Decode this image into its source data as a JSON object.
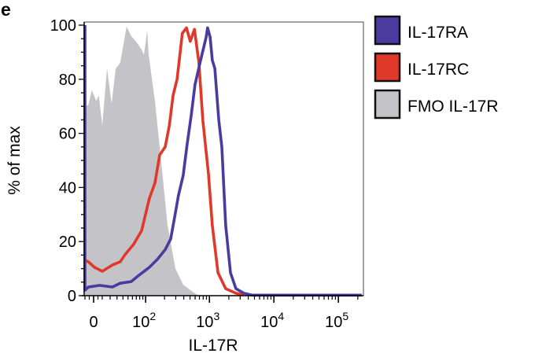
{
  "panel_label": "e",
  "chart_data": {
    "type": "area",
    "title": "",
    "xlabel": "IL-17R",
    "ylabel": "% of max",
    "x_scale": "biexponential",
    "xlim": [
      -11,
      230000
    ],
    "ylim": [
      0,
      100
    ],
    "x_ticks": [
      {
        "value": 0,
        "label": "0",
        "base": "0",
        "exp": ""
      },
      {
        "value": 100,
        "label": "10^2",
        "base": "10",
        "exp": "2"
      },
      {
        "value": 1000,
        "label": "10^3",
        "base": "10",
        "exp": "3"
      },
      {
        "value": 10000,
        "label": "10^4",
        "base": "10",
        "exp": "4"
      },
      {
        "value": 100000,
        "label": "10^5",
        "base": "10",
        "exp": "5"
      }
    ],
    "y_ticks": [
      "0",
      "20",
      "40",
      "60",
      "80",
      "100"
    ],
    "grid": false,
    "legend_position": "right",
    "series": [
      {
        "name": "IL-17RA",
        "color": "#4b3a9f",
        "style": "line",
        "x": [
          -11,
          -11,
          -6,
          7,
          23,
          35,
          57,
          78,
          115,
          154,
          205,
          250,
          288,
          330,
          392,
          451,
          520,
          598,
          730,
          890,
          937,
          1024,
          1110,
          1213,
          1396,
          1558,
          1790,
          2125,
          2574,
          3430,
          4540,
          230000
        ],
        "y": [
          100,
          2,
          3.2,
          3.8,
          3.2,
          4.6,
          5.2,
          7.6,
          10.5,
          13.4,
          17,
          21,
          29,
          37,
          44.5,
          56,
          66.5,
          78,
          87,
          95.6,
          99,
          95.6,
          87,
          84,
          65,
          55,
          26,
          8.5,
          2.6,
          0.9,
          0.2,
          0.2
        ]
      },
      {
        "name": "IL-17RC",
        "color": "#e0382b",
        "style": "line",
        "x": [
          -9,
          -6,
          1,
          10,
          23,
          35,
          45,
          63,
          86,
          115,
          141,
          168,
          205,
          238,
          272,
          314,
          380,
          440,
          505,
          585,
          688,
          790,
          966,
          1110,
          1357,
          1790,
          2574,
          3430
        ],
        "y": [
          13,
          12.5,
          10.5,
          9,
          11.3,
          12.5,
          15.4,
          19,
          24,
          36,
          41.6,
          52,
          55,
          63,
          74,
          80,
          97,
          99,
          94,
          98.5,
          86,
          65,
          45,
          26,
          8.5,
          2.6,
          0.9,
          0.2
        ]
      },
      {
        "name": "FMO IL-17R",
        "color": "#c4c4c8",
        "style": "filled",
        "x": [
          -10,
          -9,
          -6,
          -2,
          3,
          6,
          10,
          16,
          22,
          28,
          35,
          47,
          57,
          69,
          86,
          94,
          106,
          112,
          141,
          168,
          223,
          296,
          392,
          585,
          688
        ],
        "y": [
          0,
          70,
          70.6,
          76,
          72,
          74,
          63,
          84,
          71,
          84,
          86,
          99.5,
          96,
          94,
          91,
          89,
          98,
          89,
          72,
          55,
          26,
          10,
          4,
          1,
          0
        ]
      }
    ]
  }
}
